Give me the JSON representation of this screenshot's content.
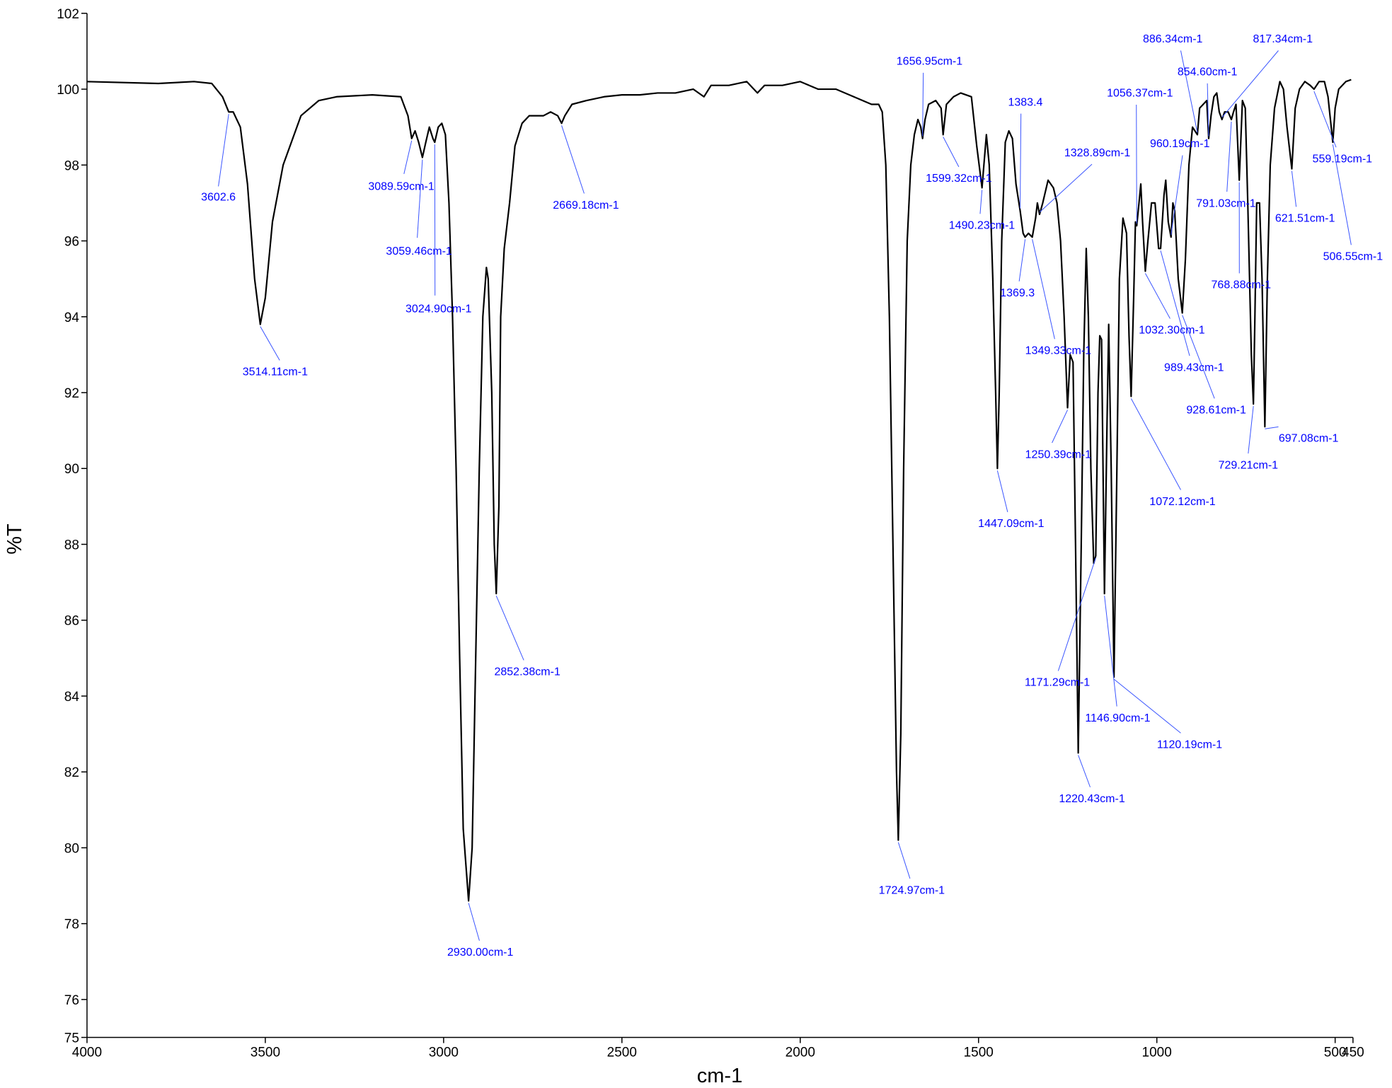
{
  "chart_data": {
    "type": "line",
    "xlabel": "cm-1",
    "ylabel": "%T",
    "xlim": [
      4000,
      450
    ],
    "ylim": [
      75,
      102
    ],
    "xticks": [
      4000,
      3500,
      3000,
      2500,
      2000,
      1500,
      1000,
      500,
      450
    ],
    "yticks": [
      75,
      76,
      78,
      80,
      82,
      84,
      86,
      88,
      90,
      92,
      94,
      96,
      98,
      100,
      102
    ],
    "x": [
      4000,
      3800,
      3700,
      3650,
      3620,
      3602.6,
      3590,
      3570,
      3550,
      3530,
      3514.11,
      3500,
      3480,
      3450,
      3400,
      3350,
      3300,
      3200,
      3120,
      3100,
      3089.59,
      3080,
      3070,
      3059.46,
      3050,
      3040,
      3030,
      3024.9,
      3015,
      3005,
      2995,
      2985,
      2975,
      2965,
      2955,
      2945,
      2930,
      2920,
      2910,
      2900,
      2890,
      2880,
      2875,
      2865,
      2858,
      2852.38,
      2845,
      2840,
      2830,
      2815,
      2800,
      2780,
      2760,
      2720,
      2700,
      2680,
      2669.18,
      2660,
      2640,
      2600,
      2550,
      2500,
      2450,
      2400,
      2350,
      2300,
      2270,
      2250,
      2200,
      2150,
      2120,
      2100,
      2050,
      2000,
      1950,
      1900,
      1850,
      1800,
      1780,
      1770,
      1760,
      1750,
      1740,
      1730,
      1724.97,
      1718,
      1710,
      1700,
      1690,
      1680,
      1670,
      1662,
      1656.95,
      1650,
      1640,
      1620,
      1605,
      1599.32,
      1590,
      1570,
      1550,
      1520,
      1505,
      1490.23,
      1485,
      1478,
      1470,
      1460,
      1452,
      1447.09,
      1442,
      1435,
      1425,
      1415,
      1405,
      1395,
      1383.4,
      1375,
      1369.3,
      1360,
      1349.33,
      1340,
      1335,
      1328.89,
      1320,
      1305,
      1290,
      1280,
      1270,
      1260,
      1250.39,
      1243,
      1235,
      1228,
      1220.43,
      1212,
      1205,
      1198,
      1192,
      1185,
      1177,
      1171.29,
      1165,
      1160,
      1155,
      1146.9,
      1140,
      1135,
      1128,
      1120.19,
      1112,
      1105,
      1095,
      1085,
      1078,
      1072.12,
      1065,
      1060,
      1056.37,
      1050,
      1045,
      1040,
      1032.3,
      1025,
      1015,
      1005,
      995,
      989.43,
      980,
      975,
      968,
      960.19,
      955,
      950,
      940,
      928.61,
      920,
      910,
      900,
      886.34,
      880,
      870,
      860,
      854.6,
      848,
      840,
      832,
      825,
      817.34,
      810,
      800,
      791.03,
      785,
      778,
      768.88,
      760,
      752,
      745,
      735,
      729.21,
      725,
      720,
      712,
      705,
      697.08,
      690,
      682,
      670,
      655,
      645,
      635,
      621.51,
      612,
      600,
      585,
      570,
      559.19,
      545,
      530,
      520,
      506.55,
      500,
      490,
      470,
      455
    ],
    "series": [
      {
        "color": "#000000",
        "values": [
          100.2,
          100.15,
          100.2,
          100.15,
          99.8,
          99.4,
          99.4,
          99.0,
          97.5,
          95,
          93.8,
          94.5,
          96.5,
          98,
          99.3,
          99.7,
          99.8,
          99.85,
          99.8,
          99.3,
          98.7,
          98.9,
          98.6,
          98.2,
          98.6,
          99.0,
          98.7,
          98.6,
          99.0,
          99.1,
          98.8,
          97,
          94,
          90,
          85,
          80.5,
          78.6,
          80,
          85,
          90,
          94,
          95.3,
          95.0,
          92,
          88,
          86.7,
          89,
          94,
          95.8,
          97,
          98.5,
          99.1,
          99.3,
          99.3,
          99.4,
          99.3,
          99.1,
          99.3,
          99.6,
          99.7,
          99.8,
          99.85,
          99.85,
          99.9,
          99.9,
          100,
          99.8,
          100.1,
          100.1,
          100.2,
          99.9,
          100.1,
          100.1,
          100.2,
          100,
          100,
          99.8,
          99.6,
          99.6,
          99.4,
          98,
          94,
          88,
          82,
          80.2,
          83,
          90,
          96,
          98,
          98.8,
          99.2,
          99,
          98.7,
          99.2,
          99.6,
          99.7,
          99.5,
          98.8,
          99.6,
          99.8,
          99.9,
          99.8,
          98.5,
          97.4,
          98,
          98.8,
          98,
          95,
          92,
          90,
          92,
          96,
          98.6,
          98.9,
          98.7,
          97.5,
          96.8,
          96.2,
          96.1,
          96.2,
          96.1,
          96.6,
          97,
          96.7,
          97,
          97.6,
          97.4,
          97,
          96,
          94,
          91.6,
          93,
          92.8,
          88,
          82.5,
          88,
          93,
          95.8,
          94,
          90,
          87.5,
          87.7,
          92,
          93.5,
          93.4,
          86.7,
          91,
          93.8,
          90,
          84.5,
          90,
          95,
          96.6,
          96.2,
          93.5,
          91.9,
          94.5,
          96.5,
          96.4,
          97,
          97.5,
          96.5,
          95.2,
          96,
          97,
          97,
          95.8,
          95.8,
          97.2,
          97.6,
          96.5,
          96.1,
          97,
          96.8,
          95,
          94.1,
          95.5,
          98,
          99,
          98.8,
          99.5,
          99.6,
          99.7,
          98.7,
          99.3,
          99.8,
          99.9,
          99.4,
          99.2,
          99.4,
          99.4,
          99.2,
          99.4,
          99.6,
          97.6,
          99.7,
          99.5,
          97,
          93,
          91.7,
          94,
          97,
          97,
          95,
          91.1,
          95,
          98,
          99.5,
          100.2,
          100,
          99,
          97.9,
          99.5,
          100,
          100.2,
          100.1,
          100,
          100.2,
          100.2,
          99.8,
          98.6,
          99.5,
          100,
          100.2,
          100.25
        ]
      }
    ],
    "annotations": [
      {
        "label": "3602.6",
        "x": 3602.6,
        "y": 99.4
      },
      {
        "label": "3089.59cm-1",
        "x": 3089.59,
        "y": 98.7
      },
      {
        "label": "3059.46cm-1",
        "x": 3059.46,
        "y": 98.2
      },
      {
        "label": "3024.90cm-1",
        "x": 3024.9,
        "y": 98.6
      },
      {
        "label": "3514.11cm-1",
        "x": 3514.11,
        "y": 93.8
      },
      {
        "label": "2852.38cm-1",
        "x": 2852.38,
        "y": 86.7
      },
      {
        "label": "2669.18cm-1",
        "x": 2669.18,
        "y": 99.1
      },
      {
        "label": "2930.00cm-1",
        "x": 2930,
        "y": 78.6
      },
      {
        "label": "1724.97cm-1",
        "x": 1724.97,
        "y": 80.2
      },
      {
        "label": "1656.95cm-1",
        "x": 1656.95,
        "y": 98.7
      },
      {
        "label": "1599.32cm-1",
        "x": 1599.32,
        "y": 98.8
      },
      {
        "label": "1490.23cm-1",
        "x": 1490.23,
        "y": 97.4
      },
      {
        "label": "1447.09cm-1",
        "x": 1447.09,
        "y": 90
      },
      {
        "label": "1383.4",
        "x": 1383.4,
        "y": 96.8
      },
      {
        "label": "1369.3",
        "x": 1369.3,
        "y": 96.1
      },
      {
        "label": "1349.33cm-1",
        "x": 1349.33,
        "y": 96.1
      },
      {
        "label": "1328.89cm-1",
        "x": 1328.89,
        "y": 96.7
      },
      {
        "label": "1250.39cm-1",
        "x": 1250.39,
        "y": 91.6
      },
      {
        "label": "1171.29cm-1",
        "x": 1171.29,
        "y": 87.7
      },
      {
        "label": "1146.90cm-1",
        "x": 1146.9,
        "y": 86.7
      },
      {
        "label": "1120.19cm-1",
        "x": 1120.19,
        "y": 84.5
      },
      {
        "label": "1220.43cm-1",
        "x": 1220.43,
        "y": 82.5
      },
      {
        "label": "1072.12cm-1",
        "x": 1072.12,
        "y": 91.9
      },
      {
        "label": "1056.37cm-1",
        "x": 1056.37,
        "y": 96.4
      },
      {
        "label": "1032.30cm-1",
        "x": 1032.3,
        "y": 95.2
      },
      {
        "label": "989.43cm-1",
        "x": 989.43,
        "y": 95.8
      },
      {
        "label": "960.19cm-1",
        "x": 960.19,
        "y": 96.1
      },
      {
        "label": "928.61cm-1",
        "x": 928.61,
        "y": 94.1
      },
      {
        "label": "886.34cm-1",
        "x": 886.34,
        "y": 98.8
      },
      {
        "label": "854.60cm-1",
        "x": 854.6,
        "y": 98.7
      },
      {
        "label": "817.34cm-1",
        "x": 817.34,
        "y": 99.2
      },
      {
        "label": "791.03cm-1",
        "x": 791.03,
        "y": 99.2
      },
      {
        "label": "768.88cm-1",
        "x": 768.88,
        "y": 97.6
      },
      {
        "label": "729.21cm-1",
        "x": 729.21,
        "y": 91.7
      },
      {
        "label": "697.08cm-1",
        "x": 697.08,
        "y": 91.1
      },
      {
        "label": "621.51cm-1",
        "x": 621.51,
        "y": 97.9
      },
      {
        "label": "559.19cm-1",
        "x": 559.19,
        "y": 100
      },
      {
        "label": "506.55cm-1",
        "x": 506.55,
        "y": 98.6
      }
    ]
  }
}
